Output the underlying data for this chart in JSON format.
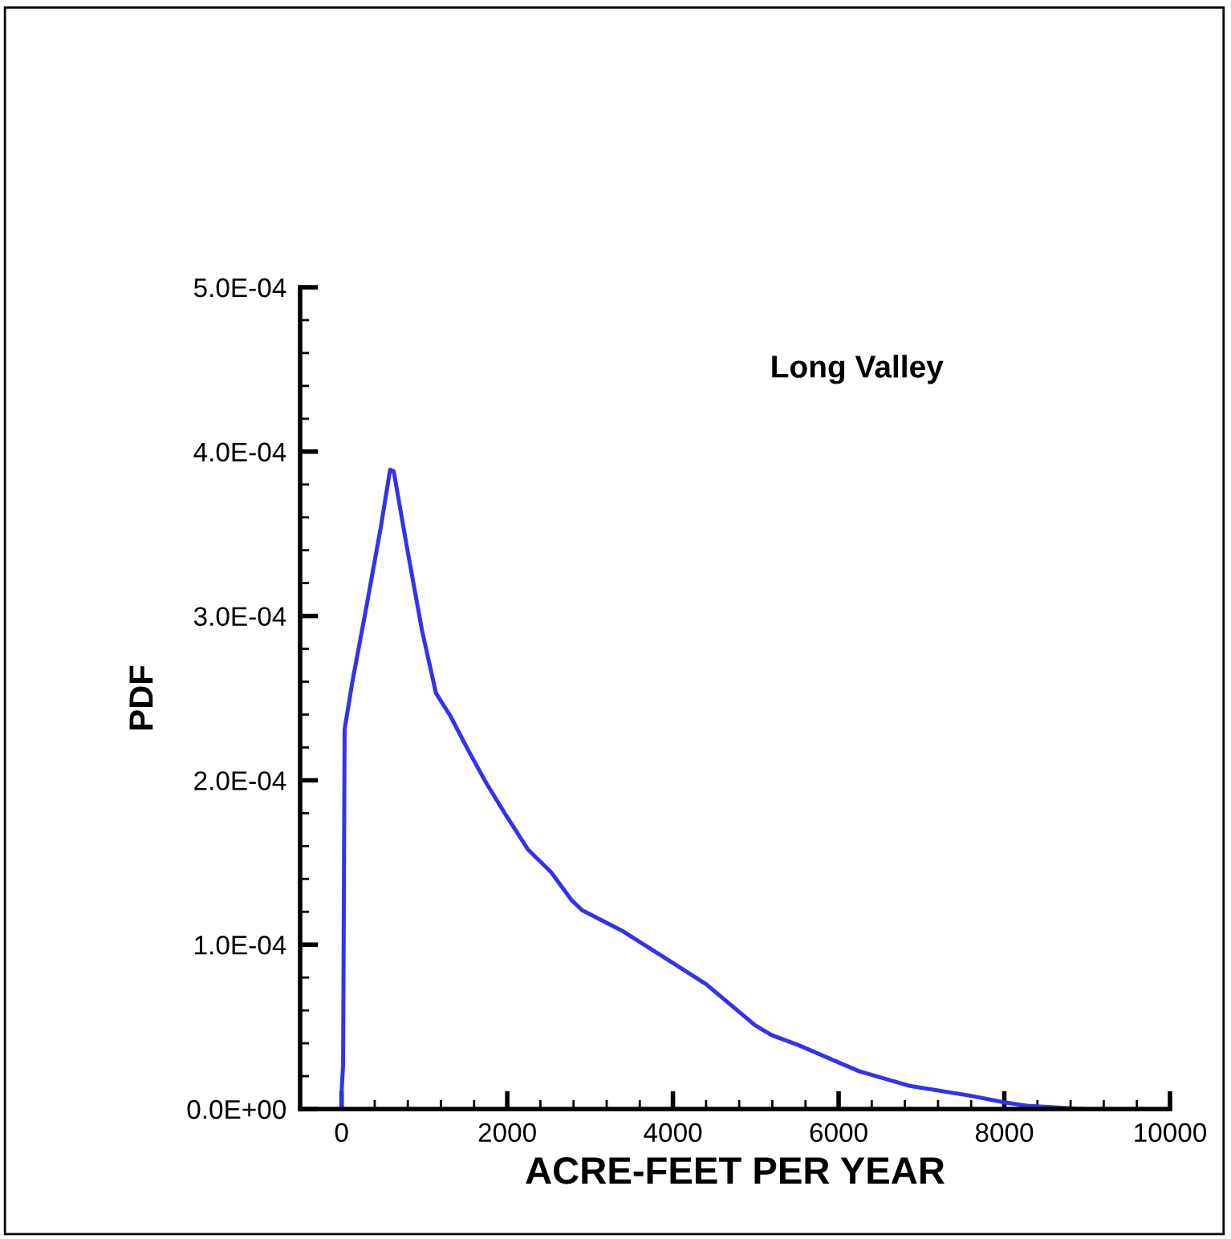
{
  "chart_data": {
    "type": "line",
    "xlabel": "ACRE-FEET PER YEAR",
    "ylabel": "PDF",
    "annotations": [
      "Long Valley"
    ],
    "series": [
      {
        "color": "#3333ee",
        "x": [
          0,
          0,
          19,
          37,
          131,
          287,
          474,
          586,
          630,
          785,
          972,
          1140,
          1315,
          1533,
          1751,
          1969,
          2249,
          2530,
          2779,
          2903,
          3402,
          3963,
          4399,
          4991,
          5190,
          5508,
          6246,
          6862,
          7600,
          8000,
          8277,
          8954
        ],
        "values": [
          0,
          1e-05,
          2.7e-05,
          0.000231,
          0.00026,
          0.000302,
          0.000354,
          0.000389,
          0.000388,
          0.000343,
          0.000291,
          0.000253,
          0.000239,
          0.000218,
          0.000198,
          0.00018,
          0.000158,
          0.000144,
          0.000127,
          0.000121,
          0.000108,
          9e-05,
          7.6e-05,
          5.1e-05,
          4.5e-05,
          3.9e-05,
          2.3e-05,
          1.4e-05,
          8e-06,
          4e-06,
          2e-06,
          0
        ]
      }
    ],
    "xlim": [
      -500,
      10000
    ],
    "ylim": [
      0,
      0.0005
    ],
    "xticks": [
      0,
      {
        "value": 400,
        "label": null
      },
      {
        "value": 800,
        "label": null
      },
      {
        "value": 1200,
        "label": null
      },
      {
        "value": 1600,
        "label": null
      },
      2000,
      {
        "value": 2400,
        "label": null
      },
      {
        "value": 2800,
        "label": null
      },
      {
        "value": 3200,
        "label": null
      },
      {
        "value": 3600,
        "label": null
      },
      4000,
      {
        "value": 4400,
        "label": null
      },
      {
        "value": 4800,
        "label": null
      },
      {
        "value": 5200,
        "label": null
      },
      {
        "value": 5600,
        "label": null
      },
      6000,
      {
        "value": 6400,
        "label": null
      },
      {
        "value": 6800,
        "label": null
      },
      {
        "value": 7200,
        "label": null
      },
      {
        "value": 7600,
        "label": null
      },
      8000,
      {
        "value": 8400,
        "label": null
      },
      {
        "value": 8800,
        "label": null
      },
      {
        "value": 9200,
        "label": null
      },
      {
        "value": 9600,
        "label": null
      },
      10000
    ],
    "yticks": [
      {
        "value": 0,
        "label": "0.0E+00"
      },
      {
        "value": 2e-05,
        "label": null
      },
      {
        "value": 4e-05,
        "label": null
      },
      {
        "value": 6e-05,
        "label": null
      },
      {
        "value": 8e-05,
        "label": null
      },
      {
        "value": 0.0001,
        "label": "1.0E-04"
      },
      {
        "value": 0.00012,
        "label": null
      },
      {
        "value": 0.00014,
        "label": null
      },
      {
        "value": 0.00016,
        "label": null
      },
      {
        "value": 0.00018,
        "label": null
      },
      {
        "value": 0.0002,
        "label": "2.0E-04"
      },
      {
        "value": 0.00022,
        "label": null
      },
      {
        "value": 0.00024,
        "label": null
      },
      {
        "value": 0.00026,
        "label": null
      },
      {
        "value": 0.00028,
        "label": null
      },
      {
        "value": 0.0003,
        "label": "3.0E-04"
      },
      {
        "value": 0.00032,
        "label": null
      },
      {
        "value": 0.00034,
        "label": null
      },
      {
        "value": 0.00036,
        "label": null
      },
      {
        "value": 0.00038,
        "label": null
      },
      {
        "value": 0.0004,
        "label": "4.0E-04"
      },
      {
        "value": 0.00042,
        "label": null
      },
      {
        "value": 0.00044,
        "label": null
      },
      {
        "value": 0.00046,
        "label": null
      },
      {
        "value": 0.00048,
        "label": null
      },
      {
        "value": 0.0005,
        "label": "5.0E-04"
      }
    ],
    "grid": false,
    "legend": false
  }
}
